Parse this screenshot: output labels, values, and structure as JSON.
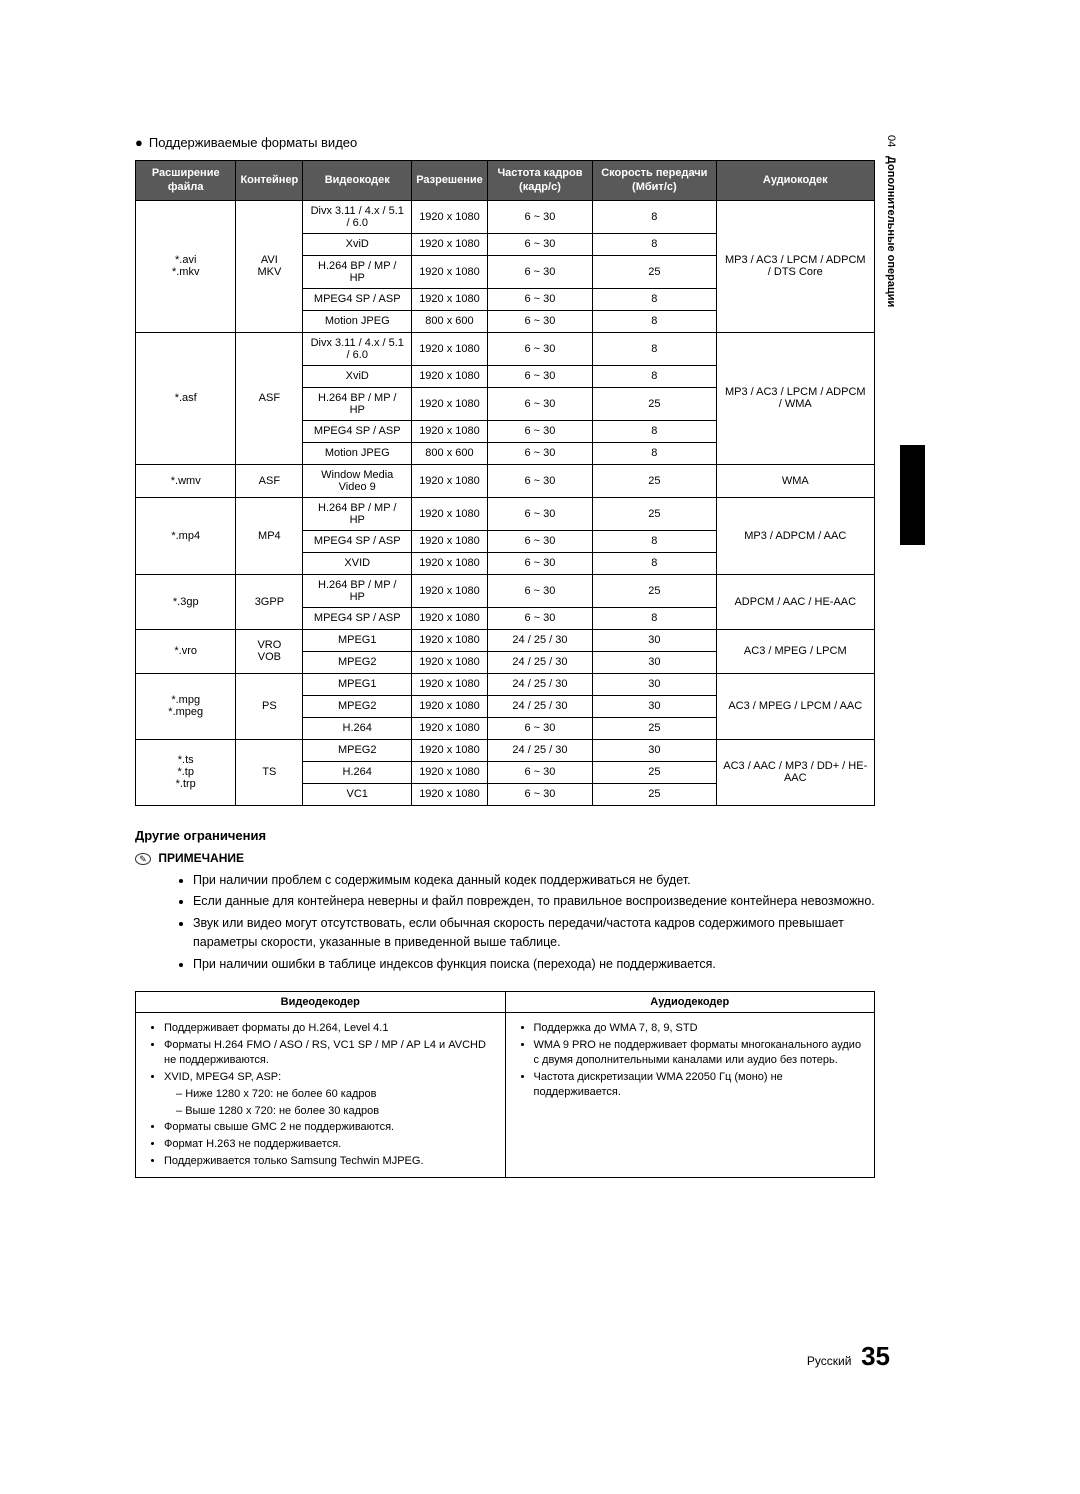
{
  "tab": {
    "num": "04",
    "text": "Дополнительные операции"
  },
  "pageTitle": "Поддерживаемые форматы видео",
  "headers": [
    "Расширение файла",
    "Контейнер",
    "Видеокодек",
    "Разрешение",
    "Частота кадров (кадр/с)",
    "Скорость передачи (Мбит/с)",
    "Аудиокодек"
  ],
  "groups": [
    {
      "ext": "*.avi\n*.mkv",
      "container": "AVI\nMKV",
      "audio": "MP3 / AC3 / LPCM / ADPCM / DTS Core",
      "rows": [
        {
          "codec": "Divx 3.11 / 4.x / 5.1 / 6.0",
          "res": "1920 x 1080",
          "fps": "6 ~ 30",
          "br": "8"
        },
        {
          "codec": "XviD",
          "res": "1920 x 1080",
          "fps": "6 ~ 30",
          "br": "8"
        },
        {
          "codec": "H.264 BP / MP / HP",
          "res": "1920 x 1080",
          "fps": "6 ~ 30",
          "br": "25"
        },
        {
          "codec": "MPEG4 SP / ASP",
          "res": "1920 x 1080",
          "fps": "6 ~ 30",
          "br": "8"
        },
        {
          "codec": "Motion JPEG",
          "res": "800 x 600",
          "fps": "6 ~ 30",
          "br": "8"
        }
      ]
    },
    {
      "ext": "*.asf",
      "container": "ASF",
      "audio": "MP3 / AC3 / LPCM / ADPCM / WMA",
      "rows": [
        {
          "codec": "Divx 3.11 / 4.x / 5.1 / 6.0",
          "res": "1920 x 1080",
          "fps": "6 ~ 30",
          "br": "8"
        },
        {
          "codec": "XviD",
          "res": "1920 x 1080",
          "fps": "6 ~ 30",
          "br": "8"
        },
        {
          "codec": "H.264 BP / MP / HP",
          "res": "1920 x 1080",
          "fps": "6 ~ 30",
          "br": "25"
        },
        {
          "codec": "MPEG4 SP / ASP",
          "res": "1920 x 1080",
          "fps": "6 ~ 30",
          "br": "8"
        },
        {
          "codec": "Motion JPEG",
          "res": "800 x 600",
          "fps": "6 ~ 30",
          "br": "8"
        }
      ]
    },
    {
      "ext": "*.wmv",
      "container": "ASF",
      "audio": "WMA",
      "rows": [
        {
          "codec": "Window Media Video 9",
          "res": "1920 x 1080",
          "fps": "6 ~ 30",
          "br": "25"
        }
      ]
    },
    {
      "ext": "*.mp4",
      "container": "MP4",
      "audio": "MP3 / ADPCM / AAC",
      "rows": [
        {
          "codec": "H.264 BP / MP / HP",
          "res": "1920 x 1080",
          "fps": "6 ~ 30",
          "br": "25"
        },
        {
          "codec": "MPEG4 SP / ASP",
          "res": "1920 x 1080",
          "fps": "6 ~ 30",
          "br": "8"
        },
        {
          "codec": "XVID",
          "res": "1920 x 1080",
          "fps": "6 ~ 30",
          "br": "8"
        }
      ]
    },
    {
      "ext": "*.3gp",
      "container": "3GPP",
      "audio": "ADPCM / AAC / HE-AAC",
      "rows": [
        {
          "codec": "H.264 BP / MP / HP",
          "res": "1920 x 1080",
          "fps": "6 ~ 30",
          "br": "25"
        },
        {
          "codec": "MPEG4 SP / ASP",
          "res": "1920 x 1080",
          "fps": "6 ~ 30",
          "br": "8"
        }
      ]
    },
    {
      "ext": "*.vro",
      "container": "VRO\nVOB",
      "audio": "AC3 / MPEG / LPCM",
      "rows": [
        {
          "codec": "MPEG1",
          "res": "1920 x 1080",
          "fps": "24 / 25 / 30",
          "br": "30"
        },
        {
          "codec": "MPEG2",
          "res": "1920 x 1080",
          "fps": "24 / 25 / 30",
          "br": "30"
        }
      ]
    },
    {
      "ext": "*.mpg\n*.mpeg",
      "container": "PS",
      "audio": "AC3 / MPEG / LPCM / AAC",
      "rows": [
        {
          "codec": "MPEG1",
          "res": "1920 x 1080",
          "fps": "24 / 25 / 30",
          "br": "30"
        },
        {
          "codec": "MPEG2",
          "res": "1920 x 1080",
          "fps": "24 / 25 / 30",
          "br": "30"
        },
        {
          "codec": "H.264",
          "res": "1920 x 1080",
          "fps": "6 ~ 30",
          "br": "25"
        }
      ]
    },
    {
      "ext": "*.ts\n*.tp\n*.trp",
      "container": "TS",
      "audio": "AC3 / AAC / MP3 / DD+ / HE-AAC",
      "rows": [
        {
          "codec": "MPEG2",
          "res": "1920 x 1080",
          "fps": "24 / 25 / 30",
          "br": "30"
        },
        {
          "codec": "H.264",
          "res": "1920 x 1080",
          "fps": "6 ~ 30",
          "br": "25"
        },
        {
          "codec": "VC1",
          "res": "1920 x 1080",
          "fps": "6 ~ 30",
          "br": "25"
        }
      ]
    }
  ],
  "limits": {
    "title": "Другие ограничения",
    "noteLabel": "ПРИМЕЧАНИЕ",
    "items": [
      "При наличии проблем с содержимым кодека данный кодек поддерживаться не будет.",
      "Если данные для контейнера неверны и файл поврежден, то правильное воспроизведение контейнера невозможно.",
      "Звук или видео могут отсутствовать, если обычная скорость передачи/частота кадров содержимого превышает параметры скорости, указанные в приведенной выше таблице.",
      "При наличии ошибки в таблице индексов функция поиска (перехода) не поддерживается."
    ]
  },
  "decoders": {
    "vHead": "Видеодекодер",
    "aHead": "Аудиодекодер",
    "video": [
      "Поддерживает форматы до H.264, Level 4.1",
      "Форматы H.264 FMO / ASO / RS, VC1 SP / MP / AP L4 и AVCHD не поддерживаются.",
      "XVID, MPEG4 SP, ASP:",
      "Форматы свыше GMC 2 не поддерживаются.",
      "Формат H.263 не поддерживается.",
      "Поддерживается только Samsung Techwin MJPEG."
    ],
    "videoSub": [
      "Ниже 1280 x 720: не более 60 кадров",
      "Выше 1280 x 720: не более 30 кадров"
    ],
    "audio": [
      "Поддержка до WMA 7, 8, 9, STD",
      "WMA 9 PRO не поддерживает форматы многоканального аудио с двумя дополнительными каналами или аудио без потерь.",
      "Частота дискретизации WMA 22050 Гц (моно) не поддерживается."
    ]
  },
  "footer": {
    "lang": "Русский",
    "page": "35"
  }
}
